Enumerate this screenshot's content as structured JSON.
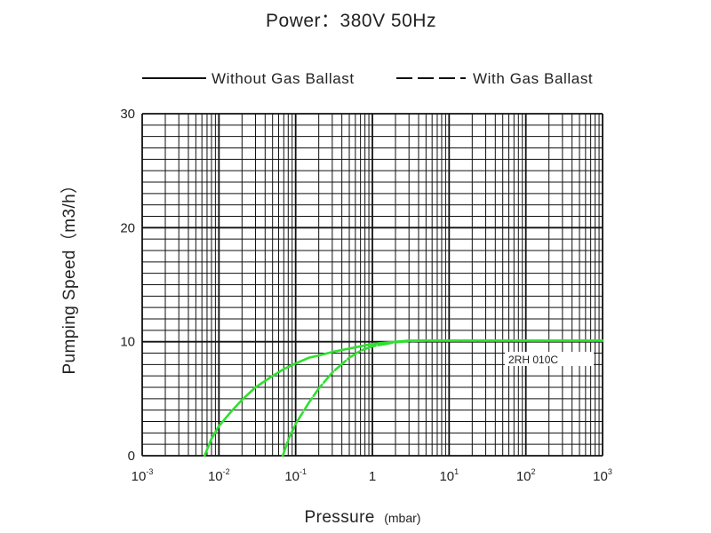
{
  "chart_data": {
    "type": "line",
    "title": "Power：380V 50Hz",
    "xlabel": "Pressure",
    "xlabel_unit": "(mbar)",
    "ylabel": "Pumping Speed（m3/h）",
    "x_scale": "log",
    "xlim": [
      0.001,
      1000
    ],
    "ylim": [
      0,
      30
    ],
    "y_ticks": [
      "0",
      "10",
      "20",
      "30"
    ],
    "x_ticks": [
      {
        "base": "10",
        "exp": "-3"
      },
      {
        "base": "10",
        "exp": "-2"
      },
      {
        "base": "10",
        "exp": "-1"
      },
      {
        "base": "1",
        "exp": ""
      },
      {
        "base": "10",
        "exp": "1"
      },
      {
        "base": "10",
        "exp": "2"
      },
      {
        "base": "10",
        "exp": "3"
      }
    ],
    "grid": true,
    "legend_position": "top",
    "legend": [
      {
        "label": "Without Gas Ballast",
        "style": "solid"
      },
      {
        "label": "With Gas Ballast",
        "style": "dashed"
      }
    ],
    "annotation": "2RH 010C",
    "line_color": "#2fe02f",
    "series": [
      {
        "style": "solid",
        "x": [
          0.0065,
          0.008,
          0.01,
          0.015,
          0.02,
          0.03,
          0.05,
          0.07,
          0.1,
          0.15,
          0.2,
          0.3,
          0.5,
          0.7,
          1,
          2,
          3,
          5,
          10,
          100,
          1000
        ],
        "y": [
          0,
          1.5,
          2.6,
          4.0,
          4.9,
          6.0,
          7.0,
          7.6,
          8.1,
          8.6,
          8.8,
          9.1,
          9.4,
          9.6,
          9.8,
          10.0,
          10.1,
          10.1,
          10.1,
          10.1,
          10.1
        ]
      },
      {
        "style": "dashed",
        "x": [
          0.068,
          0.08,
          0.1,
          0.15,
          0.2,
          0.3,
          0.5,
          0.7,
          1,
          2,
          3,
          5,
          10,
          100,
          1000
        ],
        "y": [
          0,
          1.4,
          2.8,
          4.7,
          5.9,
          7.3,
          8.6,
          9.2,
          9.6,
          9.95,
          10.05,
          10.1,
          10.1,
          10.1,
          10.1
        ]
      }
    ]
  }
}
